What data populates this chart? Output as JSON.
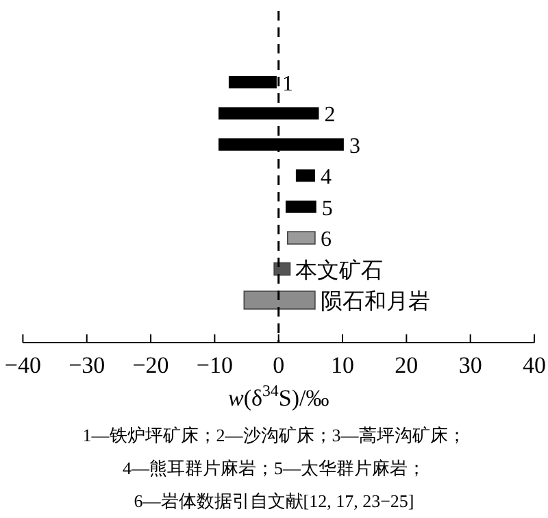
{
  "chart_data": {
    "type": "bar",
    "orientation": "horizontal",
    "categories": [
      "1",
      "2",
      "3",
      "4",
      "5",
      "6",
      "本文矿石",
      "陨石和月岩"
    ],
    "base": [
      -7.8,
      -9.4,
      -9.4,
      2.7,
      1.1,
      1.4,
      -0.7,
      -5.4
    ],
    "values": [
      7.5,
      15.7,
      19.6,
      3.0,
      4.8,
      4.3,
      2.5,
      11.1
    ],
    "colors": [
      "#000000",
      "#000000",
      "#000000",
      "#000000",
      "#000000",
      "#9a9a9a",
      "#555555",
      "#8c8c8c"
    ],
    "xlim": [
      -40,
      40
    ],
    "xticks": [
      {
        "value": -40,
        "label": "−40"
      },
      {
        "value": -30,
        "label": "−30"
      },
      {
        "value": -20,
        "label": "−20"
      },
      {
        "value": -10,
        "label": "−10"
      },
      0,
      10,
      20,
      30,
      40
    ],
    "xlabel": "w(δ$^{34}$S)/‰",
    "ref_lines": [
      {
        "axis": "x",
        "value": 0,
        "color": "#000000",
        "line_style": "dashed"
      }
    ],
    "annotations": [
      "1—铁炉坪矿床；2—沙沟矿床；3—蒿坪沟矿床；",
      "4—熊耳群片麻岩；5—太华群片麻岩；",
      "6—岩体数据引自文献[12, 17, 23−25]"
    ],
    "grid": false
  }
}
